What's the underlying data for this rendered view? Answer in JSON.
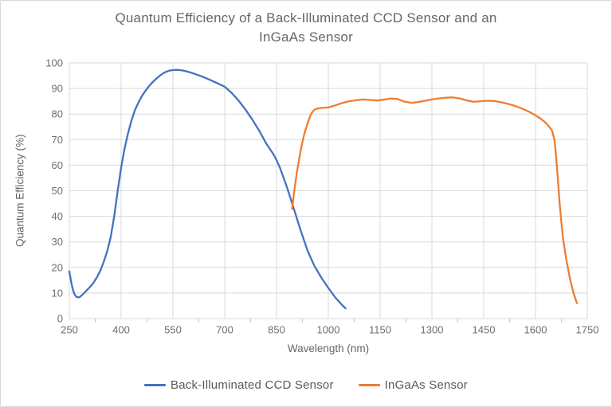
{
  "window": {
    "background": "#ffffff",
    "border_color": "#d9d9d9"
  },
  "chart_data": {
    "type": "line",
    "title_line1": "Quantum Efficiency of a Back-Illuminated CCD Sensor and an",
    "title_line2": "InGaAs Sensor",
    "xlabel": "Wavelength (nm)",
    "ylabel": "Quantum Efficiency (%)",
    "xlim": [
      250,
      1750
    ],
    "ylim": [
      0,
      100
    ],
    "x_ticks": [
      250,
      400,
      550,
      700,
      850,
      1000,
      1150,
      1300,
      1450,
      1600,
      1750
    ],
    "y_ticks": [
      0,
      10,
      20,
      30,
      40,
      50,
      60,
      70,
      80,
      90,
      100
    ],
    "grid": true,
    "legend_position": "bottom",
    "colors": {
      "grid": "#d9d9d9",
      "axis": "#d9d9d9",
      "tick": "#bfbfbf",
      "title_text": "#666666",
      "tick_text": "#6e6e6e",
      "legend_text": "#595959"
    },
    "series": [
      {
        "name": "Back-Illuminated CCD Sensor",
        "color": "#4472C4",
        "points": [
          [
            250,
            18.5
          ],
          [
            255,
            14.5
          ],
          [
            260,
            11.5
          ],
          [
            265,
            9.5
          ],
          [
            270,
            8.6
          ],
          [
            275,
            8.3
          ],
          [
            280,
            8.4
          ],
          [
            290,
            9.6
          ],
          [
            300,
            11
          ],
          [
            310,
            12.4
          ],
          [
            320,
            14
          ],
          [
            330,
            16.2
          ],
          [
            340,
            18.8
          ],
          [
            350,
            22.3
          ],
          [
            360,
            26.5
          ],
          [
            370,
            32
          ],
          [
            380,
            40
          ],
          [
            390,
            50
          ],
          [
            400,
            59
          ],
          [
            410,
            66.5
          ],
          [
            420,
            72.5
          ],
          [
            430,
            77.5
          ],
          [
            440,
            81.5
          ],
          [
            450,
            84.5
          ],
          [
            460,
            87
          ],
          [
            470,
            89
          ],
          [
            480,
            90.8
          ],
          [
            490,
            92.3
          ],
          [
            500,
            93.6
          ],
          [
            510,
            94.8
          ],
          [
            520,
            95.8
          ],
          [
            530,
            96.5
          ],
          [
            540,
            97
          ],
          [
            550,
            97.2
          ],
          [
            560,
            97.3
          ],
          [
            570,
            97.2
          ],
          [
            580,
            97
          ],
          [
            590,
            96.7
          ],
          [
            600,
            96.3
          ],
          [
            620,
            95.4
          ],
          [
            640,
            94.4
          ],
          [
            660,
            93.2
          ],
          [
            680,
            92
          ],
          [
            700,
            90.7
          ],
          [
            720,
            88.3
          ],
          [
            740,
            85.3
          ],
          [
            760,
            81.8
          ],
          [
            780,
            77.8
          ],
          [
            800,
            73.5
          ],
          [
            820,
            68.5
          ],
          [
            840,
            64.5
          ],
          [
            850,
            62
          ],
          [
            860,
            59
          ],
          [
            880,
            51.5
          ],
          [
            900,
            43
          ],
          [
            920,
            34.5
          ],
          [
            940,
            26.5
          ],
          [
            960,
            20.5
          ],
          [
            980,
            16
          ],
          [
            1000,
            12
          ],
          [
            1020,
            8.3
          ],
          [
            1040,
            5.3
          ],
          [
            1050,
            4
          ]
        ]
      },
      {
        "name": "InGaAs Sensor",
        "color": "#ED7D31",
        "points": [
          [
            895,
            43
          ],
          [
            900,
            48.5
          ],
          [
            905,
            53.5
          ],
          [
            910,
            58
          ],
          [
            915,
            62
          ],
          [
            920,
            65.8
          ],
          [
            925,
            69
          ],
          [
            930,
            72
          ],
          [
            935,
            74.3
          ],
          [
            940,
            76.4
          ],
          [
            945,
            78.3
          ],
          [
            950,
            80
          ],
          [
            955,
            81
          ],
          [
            960,
            81.7
          ],
          [
            970,
            82.2
          ],
          [
            980,
            82.4
          ],
          [
            1000,
            82.6
          ],
          [
            1020,
            83.4
          ],
          [
            1040,
            84.3
          ],
          [
            1060,
            85
          ],
          [
            1080,
            85.4
          ],
          [
            1100,
            85.7
          ],
          [
            1120,
            85.5
          ],
          [
            1140,
            85.3
          ],
          [
            1160,
            85.6
          ],
          [
            1180,
            86.1
          ],
          [
            1200,
            85.9
          ],
          [
            1220,
            84.9
          ],
          [
            1240,
            84.4
          ],
          [
            1260,
            84.7
          ],
          [
            1280,
            85.2
          ],
          [
            1300,
            85.7
          ],
          [
            1320,
            86.1
          ],
          [
            1340,
            86.4
          ],
          [
            1360,
            86.5
          ],
          [
            1380,
            86.1
          ],
          [
            1400,
            85.4
          ],
          [
            1420,
            84.8
          ],
          [
            1440,
            85
          ],
          [
            1460,
            85.2
          ],
          [
            1480,
            85.1
          ],
          [
            1500,
            84.6
          ],
          [
            1520,
            84
          ],
          [
            1540,
            83.2
          ],
          [
            1560,
            82.2
          ],
          [
            1580,
            81
          ],
          [
            1600,
            79.5
          ],
          [
            1615,
            78.2
          ],
          [
            1630,
            76.5
          ],
          [
            1640,
            75
          ],
          [
            1648,
            73.5
          ],
          [
            1655,
            70
          ],
          [
            1660,
            63
          ],
          [
            1665,
            54
          ],
          [
            1670,
            45
          ],
          [
            1675,
            37.5
          ],
          [
            1680,
            31
          ],
          [
            1690,
            22.5
          ],
          [
            1700,
            15.5
          ],
          [
            1710,
            10
          ],
          [
            1720,
            6
          ]
        ]
      }
    ]
  }
}
